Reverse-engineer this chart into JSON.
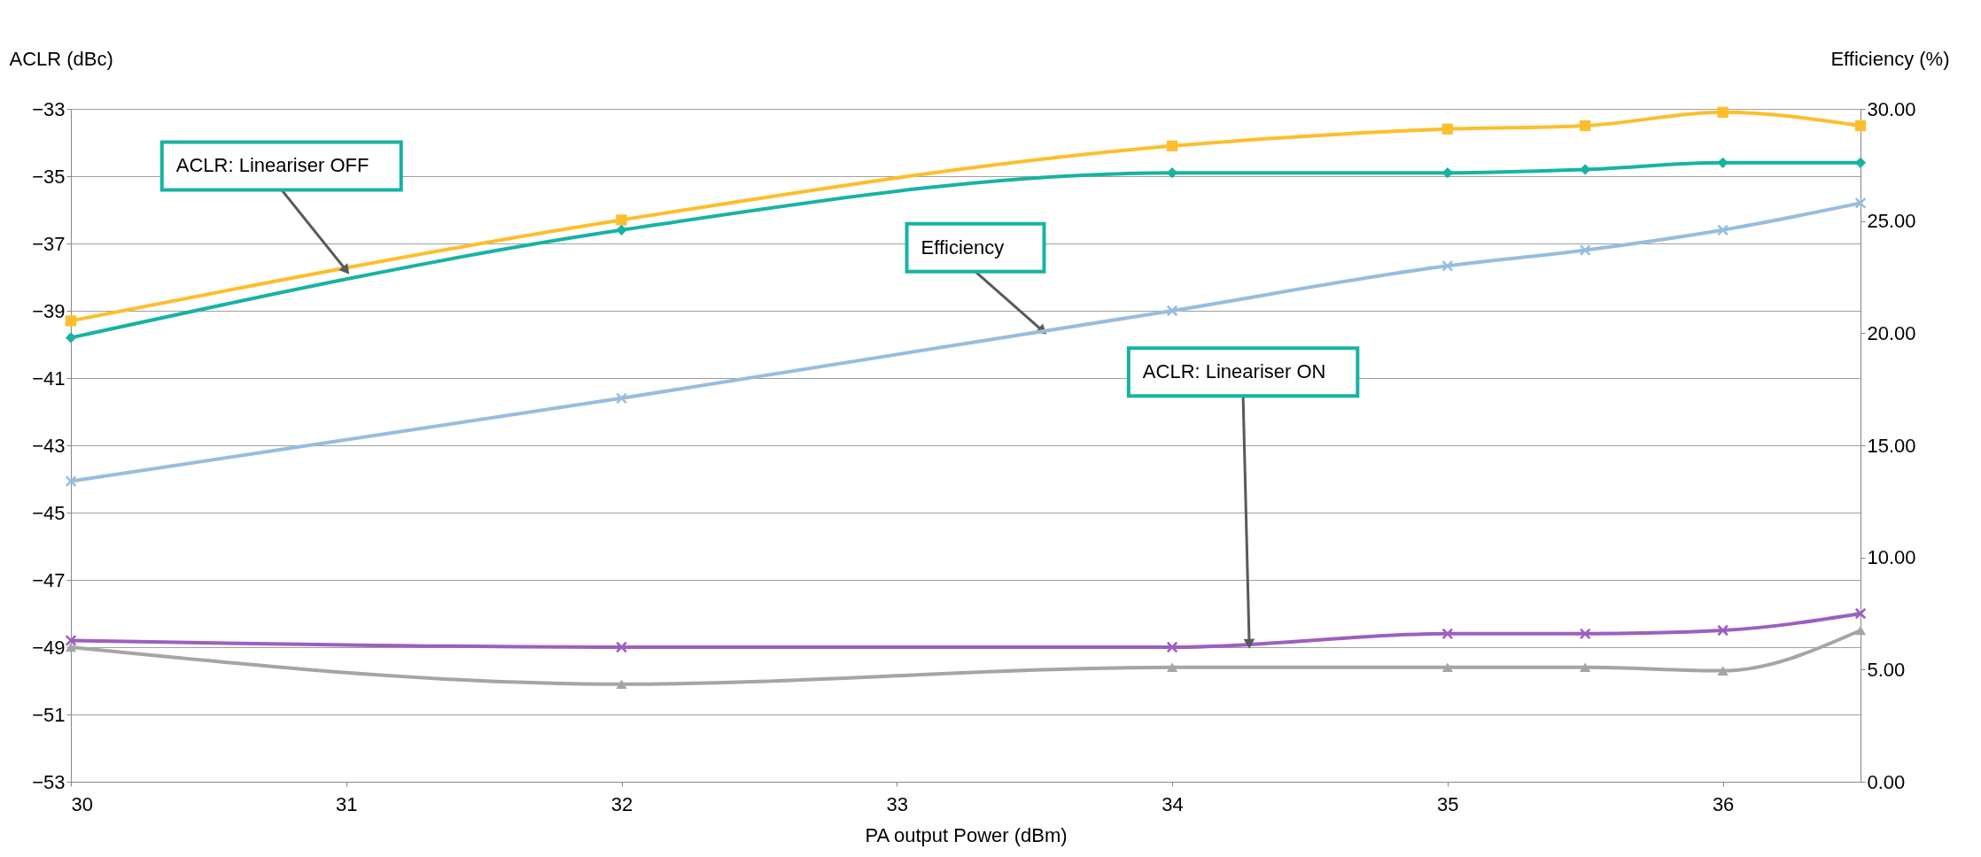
{
  "chart_data": {
    "type": "line",
    "xlabel": "PA output Power (dBm)",
    "ylabel": "ACLR (dBc)",
    "y2label": "Efficiency (%)",
    "x": [
      30,
      32,
      34,
      35,
      35.5,
      36,
      36.5
    ],
    "xlim": [
      30,
      36.5
    ],
    "xticks": [
      30,
      31,
      32,
      33,
      34,
      35,
      36
    ],
    "ylim": [
      -53,
      -33
    ],
    "yticks": [
      -53,
      -51,
      -49,
      -47,
      -45,
      -43,
      -41,
      -39,
      -37,
      -35,
      -33
    ],
    "y2lim": [
      0,
      30
    ],
    "y2ticks": [
      {
        "value": 0,
        "label": "0.00"
      },
      {
        "value": 5,
        "label": "5.00"
      },
      {
        "value": 10,
        "label": "10.00"
      },
      {
        "value": 15,
        "label": "15.00"
      },
      {
        "value": 20,
        "label": "20.00"
      },
      {
        "value": 25,
        "label": "25.00"
      },
      {
        "value": 30,
        "label": "30.00"
      }
    ],
    "grid": "y",
    "series": [
      {
        "color": "#fdbe2b",
        "marker": "square",
        "values": [
          -39.3,
          -36.3,
          -34.1,
          -33.6,
          -33.5,
          -33.1,
          -33.5
        ]
      },
      {
        "color": "#17b3a3",
        "marker": "diamond",
        "values": [
          -39.8,
          -36.6,
          -34.9,
          -34.9,
          -34.8,
          -34.6,
          -34.6
        ]
      },
      {
        "color": "#97bddd",
        "marker": "cross",
        "axis": "y2",
        "values": [
          13.4,
          17.1,
          21.0,
          23.0,
          23.7,
          24.6,
          25.8
        ]
      },
      {
        "color": "#9c5fbf",
        "marker": "cross",
        "values": [
          -48.8,
          -49.0,
          -49.0,
          -48.6,
          -48.6,
          -48.5,
          -48.0
        ]
      },
      {
        "color": "#a5a5a5",
        "marker": "triangle",
        "values": [
          -49.0,
          -50.1,
          -49.6,
          -49.6,
          -49.6,
          -49.7,
          -48.5
        ]
      }
    ],
    "annotations": [
      {
        "text": "ACLR: Lineariser OFF",
        "x": 31,
        "y": -37.8
      },
      {
        "text": "Efficiency",
        "x": 33.53,
        "y": -39.6
      },
      {
        "text": "ACLR: Lineariser ON",
        "x": 34.28,
        "y": -48.9
      }
    ]
  }
}
